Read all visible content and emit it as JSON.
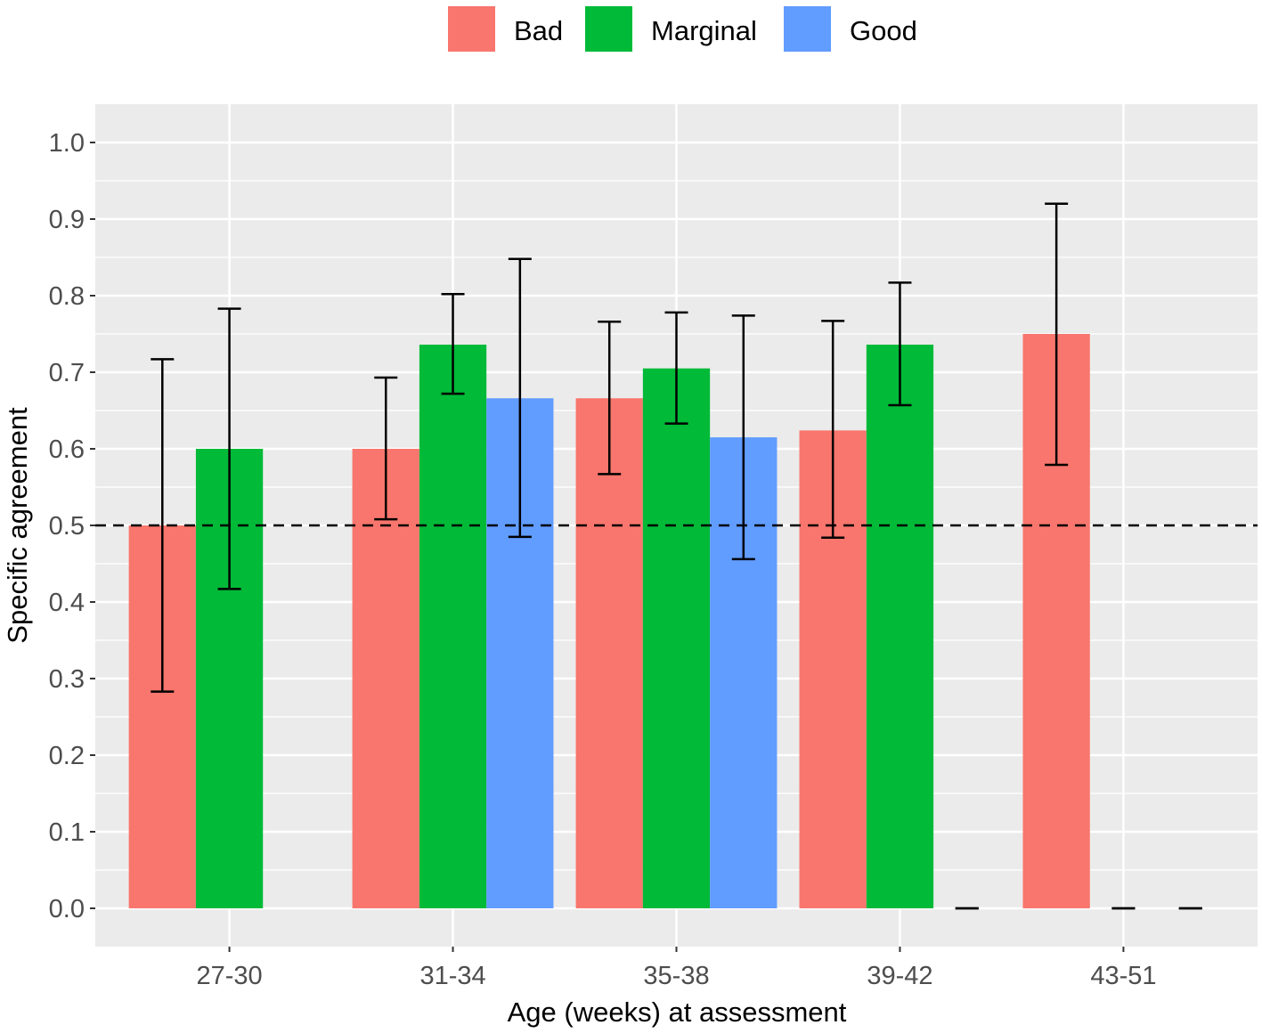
{
  "chart_data": {
    "type": "bar",
    "title": "",
    "xlabel": "Age (weeks) at assessment",
    "ylabel": "Specific agreement",
    "categories": [
      "27-30",
      "31-34",
      "35-38",
      "39-42",
      "43-51"
    ],
    "ylim": [
      -0.05,
      1.05
    ],
    "yticks": [
      0.0,
      0.1,
      0.2,
      0.3,
      0.4,
      0.5,
      0.6,
      0.7,
      0.8,
      0.9,
      1.0
    ],
    "ytick_labels": [
      "0.0",
      "0.1",
      "0.2",
      "0.3",
      "0.4",
      "0.5",
      "0.6",
      "0.7",
      "0.8",
      "0.9",
      "1.0"
    ],
    "reference_line": {
      "y": 0.5,
      "style": "dashed"
    },
    "grid": true,
    "legend_position": "top",
    "series": [
      {
        "name": "Bad",
        "color": "#F8766D",
        "values": [
          0.5,
          0.6,
          0.666,
          0.624,
          0.75
        ],
        "lower": [
          0.283,
          0.508,
          0.567,
          0.484,
          0.579
        ],
        "upper": [
          0.717,
          0.693,
          0.766,
          0.767,
          0.92
        ]
      },
      {
        "name": "Marginal",
        "color": "#00BA38",
        "values": [
          0.6,
          0.736,
          0.705,
          0.736,
          0.0
        ],
        "lower": [
          0.417,
          0.672,
          0.633,
          0.657,
          0.0
        ],
        "upper": [
          0.783,
          0.802,
          0.778,
          0.817,
          0.0
        ]
      },
      {
        "name": "Good",
        "color": "#619CFF",
        "values": [
          null,
          0.666,
          0.615,
          0.0,
          0.0
        ],
        "lower": [
          null,
          0.485,
          0.456,
          0.0,
          0.0
        ],
        "upper": [
          null,
          0.848,
          0.774,
          0.0,
          0.0
        ]
      }
    ]
  }
}
